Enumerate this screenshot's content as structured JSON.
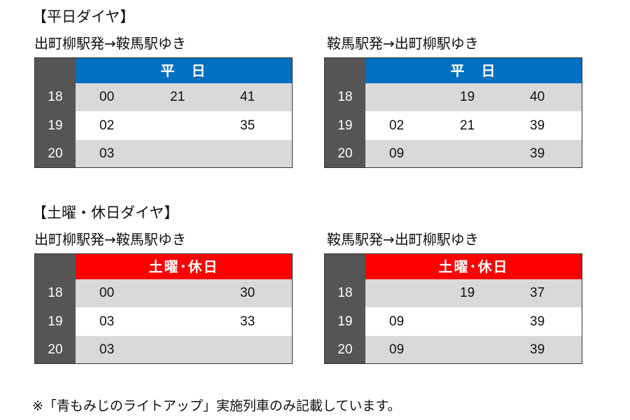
{
  "weekday": {
    "section_title": "【平日ダイヤ】",
    "header_color": "#0070c0",
    "tables": [
      {
        "route": "出町柳駅発→鞍馬駅ゆき",
        "header": "平　日",
        "rows": [
          {
            "hour": "18",
            "minutes": [
              "00",
              "21",
              "41"
            ]
          },
          {
            "hour": "19",
            "minutes": [
              "02",
              "",
              "35"
            ]
          },
          {
            "hour": "20",
            "minutes": [
              "03"
            ]
          }
        ]
      },
      {
        "route": "鞍馬駅発→出町柳駅ゆき",
        "header": "平　日",
        "rows": [
          {
            "hour": "18",
            "minutes": [
              "",
              "19",
              "40"
            ]
          },
          {
            "hour": "19",
            "minutes": [
              "02",
              "21",
              "39"
            ]
          },
          {
            "hour": "20",
            "minutes": [
              "09",
              "",
              "39"
            ]
          }
        ]
      }
    ]
  },
  "holiday": {
    "section_title": "【土曜・休日ダイヤ】",
    "header_color": "#ff0000",
    "tables": [
      {
        "route": "出町柳駅発→鞍馬駅ゆき",
        "header": "土曜･休日",
        "rows": [
          {
            "hour": "18",
            "minutes": [
              "00",
              "",
              "30"
            ]
          },
          {
            "hour": "19",
            "minutes": [
              "03",
              "",
              "33"
            ]
          },
          {
            "hour": "20",
            "minutes": [
              "03"
            ]
          }
        ]
      },
      {
        "route": "鞍馬駅発→出町柳駅ゆき",
        "header": "土曜･休日",
        "rows": [
          {
            "hour": "18",
            "minutes": [
              "",
              "19",
              "37"
            ]
          },
          {
            "hour": "19",
            "minutes": [
              "09",
              "",
              "39"
            ]
          },
          {
            "hour": "20",
            "minutes": [
              "09",
              "",
              "39"
            ]
          }
        ]
      }
    ]
  },
  "note": "※「青もみじのライトアップ」実施列車のみ記載しています。"
}
